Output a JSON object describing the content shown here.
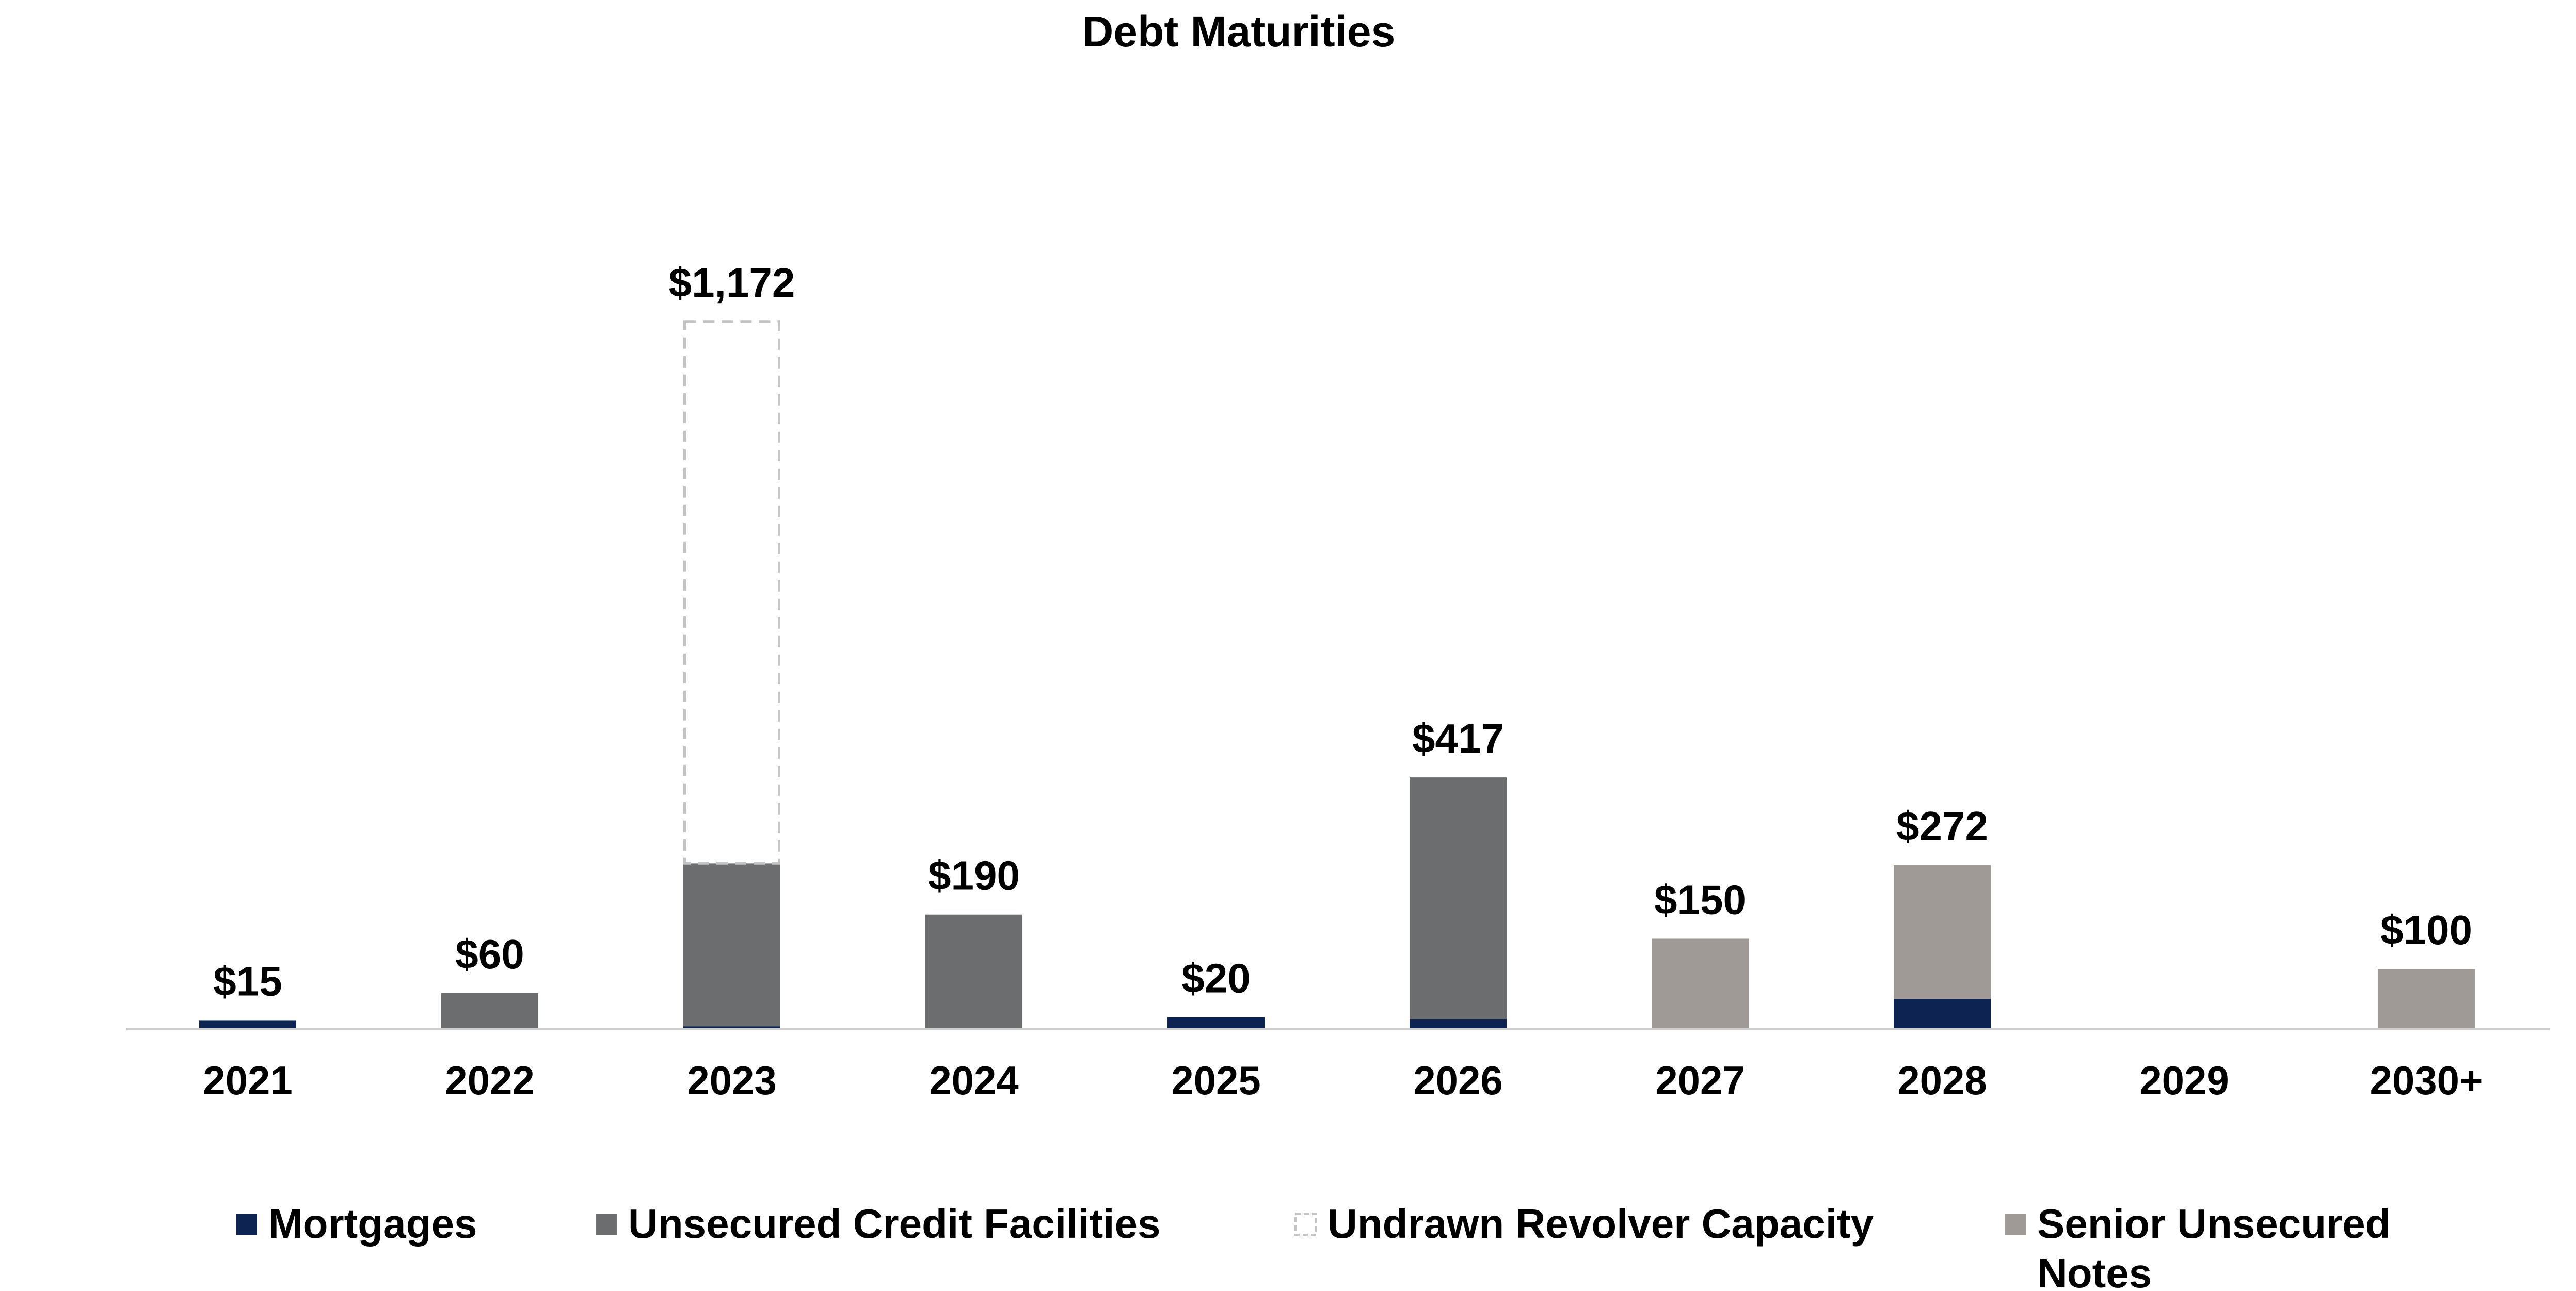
{
  "chart_data": {
    "type": "bar",
    "stacked": true,
    "title": "Debt Maturities",
    "xlabel": "",
    "ylabel": "",
    "ylim": [
      0,
      1200
    ],
    "grid": false,
    "legend_position": "bottom",
    "categories": [
      "2021",
      "2022",
      "2023",
      "2024",
      "2025",
      "2026",
      "2027",
      "2028",
      "2029",
      "2030+"
    ],
    "series": [
      {
        "name": "Mortgages",
        "color": "#0d2453",
        "values": [
          15,
          0,
          5,
          0,
          20,
          17,
          0,
          50,
          0,
          0
        ]
      },
      {
        "name": "Unsecured Credit Facilities",
        "color": "#6c6d6f",
        "values": [
          0,
          60,
          270,
          190,
          0,
          400,
          0,
          0,
          0,
          0
        ]
      },
      {
        "name": "Undrawn Revolver Capacity",
        "color": "#ffffff",
        "border": "#c4c4c4",
        "dashed": true,
        "values": [
          0,
          0,
          897,
          0,
          0,
          0,
          0,
          0,
          0,
          0
        ]
      },
      {
        "name": "Senior Unsecured Notes",
        "color": "#a09a97",
        "values": [
          0,
          0,
          0,
          0,
          0,
          0,
          150,
          222,
          0,
          100
        ]
      }
    ],
    "totals": [
      "$15",
      "$60",
      "$1,172",
      "$190",
      "$20",
      "$417",
      "$150",
      "$272",
      "",
      "$100"
    ]
  }
}
